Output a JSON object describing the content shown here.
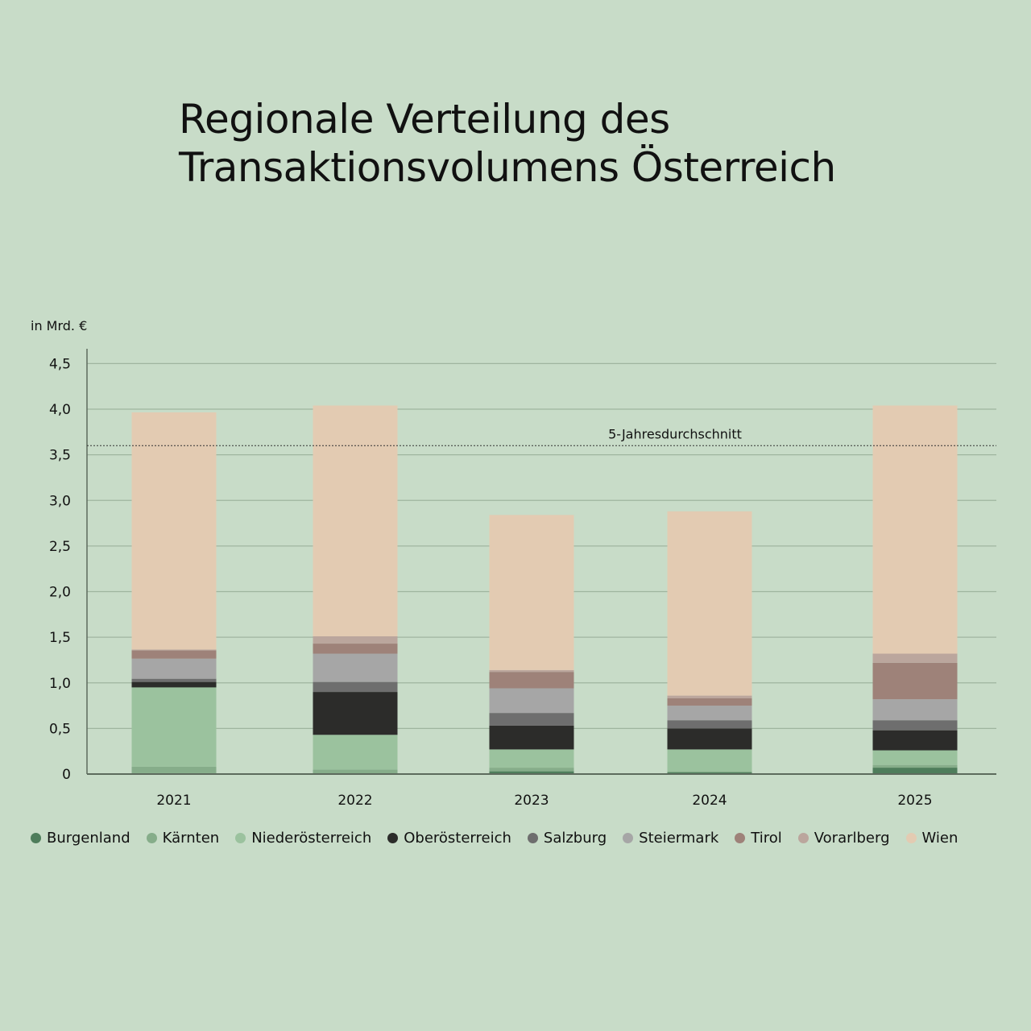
{
  "chart_data": {
    "type": "bar",
    "stacked": true,
    "title": "Regionale Verteilung des Transaktionsvolumens Österreich",
    "title_lines": [
      "Regionale Verteilung des",
      "Transaktionsvolumens Österreich"
    ],
    "ylabel": "in Mrd. €",
    "ylim": [
      0,
      4.7
    ],
    "yticks": [
      "0",
      "0,5",
      "1,0",
      "1,5",
      "2,0",
      "2,5",
      "3,0",
      "3,5",
      "4,0",
      "4,5"
    ],
    "ytick_values": [
      0,
      0.5,
      1,
      1.5,
      2,
      2.5,
      3,
      3.5,
      4,
      4.5
    ],
    "grid": true,
    "legend_position": "bottom",
    "categories": [
      "2021",
      "2022",
      "2023",
      "2024",
      "2025"
    ],
    "series": [
      {
        "name": "Burgenland",
        "color": "#4e7d5b",
        "values": [
          0.01,
          0.0,
          0.03,
          0.02,
          0.07
        ]
      },
      {
        "name": "Kärnten",
        "color": "#86ad8a",
        "values": [
          0.07,
          0.05,
          0.04,
          0.01,
          0.03
        ]
      },
      {
        "name": "Niederösterreich",
        "color": "#9bc29e",
        "values": [
          0.87,
          0.38,
          0.2,
          0.24,
          0.16
        ]
      },
      {
        "name": "Oberösterreich",
        "color": "#2c2c2a",
        "values": [
          0.06,
          0.47,
          0.26,
          0.23,
          0.22
        ]
      },
      {
        "name": "Salzburg",
        "color": "#6e6e6e",
        "values": [
          0.035,
          0.11,
          0.14,
          0.09,
          0.11
        ]
      },
      {
        "name": "Steiermark",
        "color": "#a6a6a6",
        "values": [
          0.22,
          0.31,
          0.27,
          0.16,
          0.23
        ]
      },
      {
        "name": "Tirol",
        "color": "#9e8279",
        "values": [
          0.09,
          0.11,
          0.18,
          0.08,
          0.4
        ]
      },
      {
        "name": "Vorarlberg",
        "color": "#bba69d",
        "values": [
          0.01,
          0.08,
          0.02,
          0.03,
          0.1
        ]
      },
      {
        "name": "Wien",
        "color": "#e3cbb2",
        "values": [
          2.6,
          2.53,
          1.7,
          2.02,
          2.72
        ]
      }
    ],
    "annotations": [
      {
        "label": "5-Jahresdurchschnitt",
        "y": 3.6,
        "style": "dotted"
      }
    ]
  }
}
